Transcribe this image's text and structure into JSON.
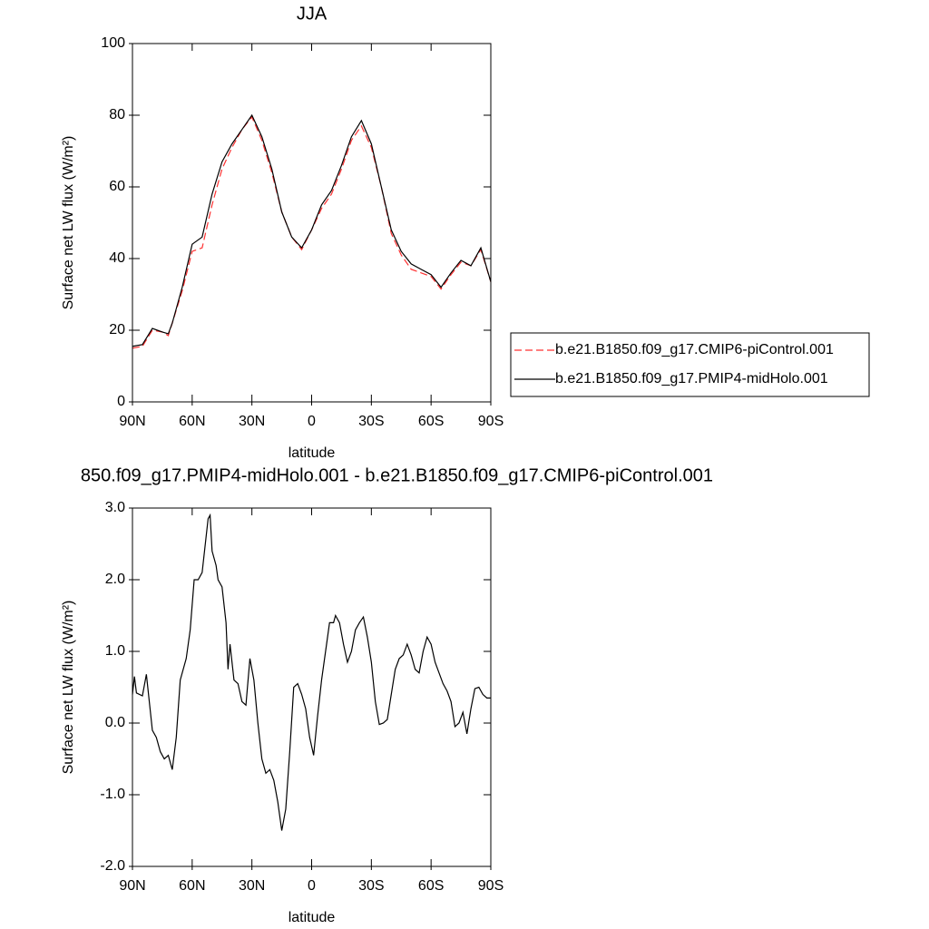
{
  "chart_data": [
    {
      "type": "line",
      "title": "JJA",
      "x_label": "latitude",
      "y_label": "Surface net LW flux (W/m²)",
      "x": [
        90,
        85,
        80,
        75,
        72,
        70,
        65,
        60,
        55,
        50,
        45,
        40,
        35,
        30,
        25,
        20,
        15,
        10,
        5,
        0,
        -5,
        -10,
        -15,
        -20,
        -25,
        -30,
        -35,
        -40,
        -45,
        -50,
        -55,
        -60,
        -65,
        -70,
        -75,
        -80,
        -85,
        -90
      ],
      "series": [
        {
          "name": "b.e21.B1850.f09_g17.CMIP6-piControl.001",
          "color": "#ff3030",
          "dashed": true,
          "values": [
            15,
            15.5,
            20,
            19.5,
            18.5,
            22,
            31,
            42,
            43,
            55,
            65,
            71,
            76,
            79.5,
            73,
            64,
            53,
            46,
            42.5,
            48,
            54,
            58,
            65,
            73,
            77,
            71,
            60,
            47,
            41,
            37,
            36,
            35,
            31.5,
            35.5,
            39,
            38,
            42.5,
            33.5
          ]
        },
        {
          "name": "b.e21.B1850.f09_g17.PMIP4-midHolo.001",
          "color": "#000000",
          "dashed": false,
          "values": [
            15.5,
            16,
            20.5,
            19.5,
            19,
            22,
            32,
            44,
            46,
            58,
            67,
            72,
            76,
            80,
            74,
            65,
            53,
            46,
            43,
            48,
            55,
            59,
            66,
            74,
            78.5,
            72,
            60,
            48,
            42,
            38.5,
            37,
            35.5,
            32,
            36,
            39.5,
            38,
            43,
            33.5
          ]
        }
      ],
      "xlim": [
        90,
        -90
      ],
      "xticks": [
        {
          "value": 90,
          "label": "90N"
        },
        {
          "value": 60,
          "label": "60N"
        },
        {
          "value": 30,
          "label": "30N"
        },
        0,
        {
          "value": -30,
          "label": "30S"
        },
        {
          "value": -60,
          "label": "60S"
        },
        {
          "value": -90,
          "label": "90S"
        }
      ],
      "ylim": [
        0,
        100
      ],
      "yticks": [
        0,
        20,
        40,
        60,
        80,
        100
      ],
      "legend": "outside right"
    },
    {
      "type": "line",
      "title": "850.f09_g17.PMIP4-midHolo.001 - b.e21.B1850.f09_g17.CMIP6-piControl.001",
      "x_label": "latitude",
      "y_label": "Surface net LW flux (W/m²)",
      "x": [
        90,
        89,
        88,
        85,
        83,
        80,
        78,
        76,
        74,
        72,
        70,
        68,
        66,
        63,
        61,
        59,
        57,
        55,
        53,
        52,
        51,
        50,
        48,
        47,
        45,
        43,
        42,
        41,
        39,
        37,
        35,
        33,
        31,
        29,
        27,
        25,
        23,
        21,
        19,
        17,
        15,
        13,
        11,
        9,
        7,
        5,
        3,
        1,
        -1,
        -3,
        -5,
        -7,
        -9,
        -11,
        -12,
        -14,
        -16,
        -18,
        -20,
        -22,
        -24,
        -26,
        -28,
        -30,
        -32,
        -34,
        -36,
        -38,
        -40,
        -42,
        -44,
        -46,
        -48,
        -50,
        -52,
        -54,
        -56,
        -58,
        -60,
        -62,
        -64,
        -66,
        -68,
        -70,
        -72,
        -74,
        -76,
        -78,
        -80,
        -82,
        -84,
        -86,
        -88,
        -90
      ],
      "series": [
        {
          "name": null,
          "color": "#000000",
          "dashed": false,
          "values": [
            0.4,
            0.65,
            0.42,
            0.38,
            0.68,
            -0.1,
            -0.2,
            -0.4,
            -0.5,
            -0.45,
            -0.65,
            -0.2,
            0.6,
            0.9,
            1.3,
            2.0,
            2.0,
            2.1,
            2.6,
            2.85,
            2.9,
            2.4,
            2.2,
            2.0,
            1.9,
            1.4,
            0.75,
            1.1,
            0.6,
            0.55,
            0.3,
            0.25,
            0.9,
            0.6,
            0.0,
            -0.5,
            -0.7,
            -0.65,
            -0.8,
            -1.1,
            -1.5,
            -1.2,
            -0.4,
            0.5,
            0.55,
            0.4,
            0.2,
            -0.2,
            -0.45,
            0.1,
            0.6,
            1.0,
            1.4,
            1.4,
            1.5,
            1.4,
            1.1,
            0.85,
            1.0,
            1.3,
            1.4,
            1.48,
            1.2,
            0.85,
            0.3,
            -0.02,
            0.0,
            0.05,
            0.4,
            0.75,
            0.9,
            0.95,
            1.1,
            0.95,
            0.75,
            0.7,
            1.0,
            1.2,
            1.1,
            0.85,
            0.7,
            0.55,
            0.45,
            0.3,
            -0.05,
            0.0,
            0.15,
            -0.15,
            0.2,
            0.48,
            0.5,
            0.4,
            0.35,
            0.35
          ]
        }
      ],
      "xlim": [
        90,
        -90
      ],
      "xticks": [
        {
          "value": 90,
          "label": "90N"
        },
        {
          "value": 60,
          "label": "60N"
        },
        {
          "value": 30,
          "label": "30N"
        },
        0,
        {
          "value": -30,
          "label": "30S"
        },
        {
          "value": -60,
          "label": "60S"
        },
        {
          "value": -90,
          "label": "90S"
        }
      ],
      "ylim": [
        -2,
        3
      ],
      "yticks": [
        {
          "value": -2,
          "label": "-2.0"
        },
        {
          "value": -1,
          "label": "-1.0"
        },
        {
          "value": 0,
          "label": "0.0"
        },
        {
          "value": 1,
          "label": "1.0"
        },
        {
          "value": 2,
          "label": "2.0"
        },
        {
          "value": 3,
          "label": "3.0"
        }
      ]
    }
  ]
}
